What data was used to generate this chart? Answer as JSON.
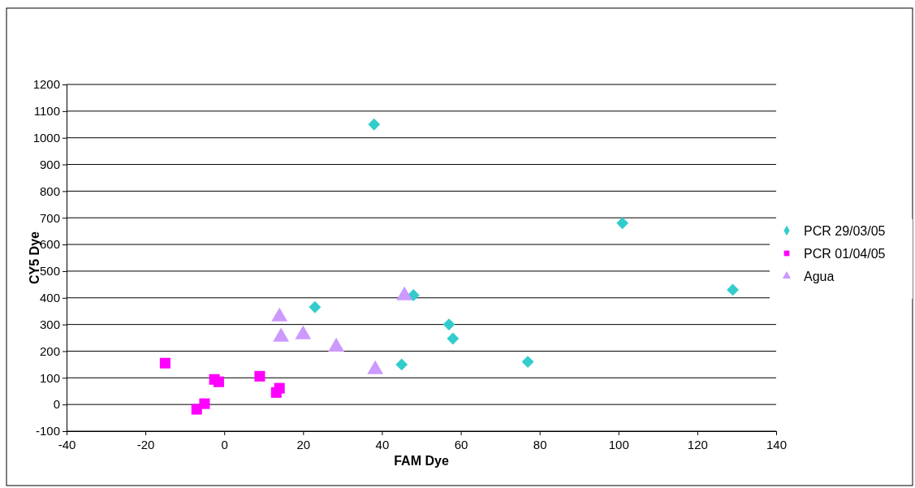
{
  "chart_data": {
    "type": "scatter",
    "xlabel": "FAM Dye",
    "ylabel": "CY5 Dye",
    "xlim": [
      -40,
      140
    ],
    "xticks": [
      -40,
      -20,
      0,
      20,
      40,
      60,
      80,
      100,
      120,
      140
    ],
    "ylim": [
      -100,
      1200
    ],
    "yticks": [
      -100,
      0,
      100,
      200,
      300,
      400,
      500,
      600,
      700,
      800,
      900,
      1000,
      1100,
      1200
    ],
    "grid": "y",
    "legend": "right",
    "series": [
      {
        "name": "PCR 29/03/05",
        "color": "#33cccc",
        "marker": "diamond",
        "x": [
          38,
          101,
          129,
          23,
          48,
          57,
          58,
          77,
          45
        ],
        "values": [
          1050,
          680,
          430,
          365,
          410,
          300,
          247,
          160,
          150
        ]
      },
      {
        "name": "PCR 01/04/05",
        "color": "#ff00ff",
        "marker": "square",
        "x": [
          -15,
          -2.5,
          -1.4,
          9,
          14,
          13.2,
          -5,
          -7
        ],
        "values": [
          155,
          94,
          85,
          106,
          61,
          45,
          3,
          -18
        ]
      },
      {
        "name": "Agua",
        "color": "#cc99ff",
        "marker": "triangle",
        "x": [
          14,
          14.4,
          20,
          28.4,
          38.3,
          45.7
        ],
        "values": [
          329,
          253,
          262,
          216,
          131,
          408
        ]
      }
    ]
  }
}
